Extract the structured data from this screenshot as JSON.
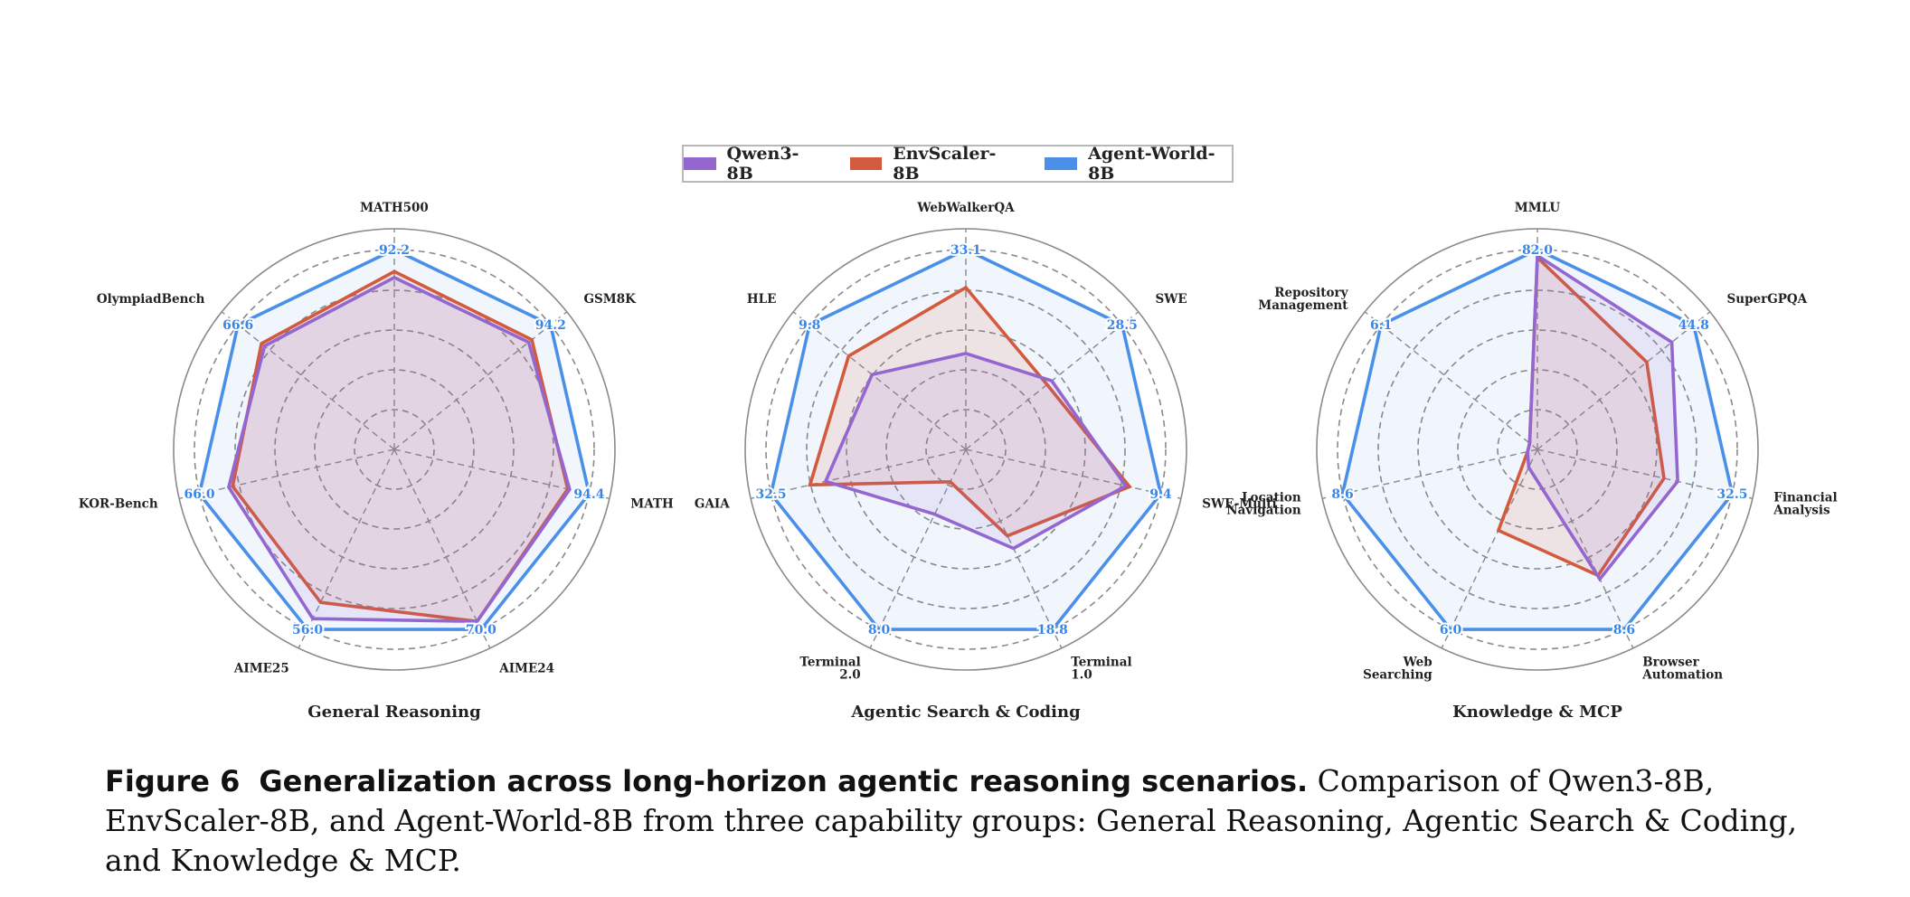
{
  "legend": {
    "items": [
      {
        "label": "Qwen3-8B",
        "color": "#9467d0"
      },
      {
        "label": "EnvScaler-8B",
        "color": "#d35a3c"
      },
      {
        "label": "Agent-World-8B",
        "color": "#4a90e8"
      }
    ]
  },
  "caption": {
    "label": "Figure 6",
    "title": "Generalization across long-horizon agentic reasoning scenarios.",
    "text": "Comparison of Qwen3-8B, EnvScaler-8B, and Agent-World-8B from three capability groups: General Reasoning, Agentic Search & Coding, and Knowledge & MCP."
  },
  "chart_data": [
    {
      "type": "radar",
      "title": "General Reasoning",
      "axes": [
        "MATH500",
        "GSM8K",
        "MATH",
        "AIME24",
        "AIME25",
        "KOR-Bench",
        "OlympiadBench"
      ],
      "value_labels": [
        "92.2",
        "94.2",
        "94.4",
        "70.0",
        "56.0",
        "66.0",
        "66.6"
      ],
      "series": [
        {
          "name": "Qwen3-8B",
          "values": [
            0.86,
            0.86,
            0.9,
            0.955,
            0.94,
            0.85,
            0.83
          ]
        },
        {
          "name": "EnvScaler-8B",
          "values": [
            0.89,
            0.88,
            0.89,
            0.955,
            0.85,
            0.83,
            0.85
          ]
        },
        {
          "name": "Agent-World-8B",
          "values": [
            1.0,
            1.0,
            1.0,
            1.0,
            1.0,
            1.0,
            1.0
          ]
        }
      ]
    },
    {
      "type": "radar",
      "title": "Agentic Search & Coding",
      "axes": [
        "WebWalkerQA",
        "SWE",
        "SWE-Multi",
        "Terminal\n1.0",
        "Terminal\n2.0",
        "GAIA",
        "HLE"
      ],
      "value_labels": [
        "33.1",
        "28.5",
        "9.4",
        "18.8",
        "8.0",
        "32.5",
        "9.8"
      ],
      "series": [
        {
          "name": "Qwen3-8B",
          "values": [
            0.48,
            0.55,
            0.82,
            0.55,
            0.36,
            0.72,
            0.6
          ]
        },
        {
          "name": "EnvScaler-8B",
          "values": [
            0.81,
            0.52,
            0.84,
            0.48,
            0.18,
            0.8,
            0.75
          ]
        },
        {
          "name": "Agent-World-8B",
          "values": [
            1.0,
            1.0,
            1.0,
            1.0,
            1.0,
            1.0,
            1.0
          ]
        }
      ]
    },
    {
      "type": "radar",
      "title": "Knowledge & MCP",
      "axes": [
        "MMLU",
        "SuperGPQA",
        "Financial\nAnalysis",
        "Browser\nAutomation",
        "Web\nSearching",
        "Location\nNavigation",
        "Repository\nManagement"
      ],
      "value_labels": [
        "82.0",
        "44.8",
        "32.5",
        "8.6",
        "6.0",
        "8.6",
        "6.1"
      ],
      "series": [
        {
          "name": "Qwen3-8B",
          "values": [
            0.97,
            0.86,
            0.72,
            0.72,
            0.1,
            0.05,
            0.05
          ]
        },
        {
          "name": "EnvScaler-8B",
          "values": [
            0.96,
            0.7,
            0.65,
            0.7,
            0.45,
            0.05,
            0.05
          ]
        },
        {
          "name": "Agent-World-8B",
          "values": [
            1.0,
            1.0,
            1.0,
            1.0,
            1.0,
            1.0,
            1.0
          ]
        }
      ]
    }
  ]
}
